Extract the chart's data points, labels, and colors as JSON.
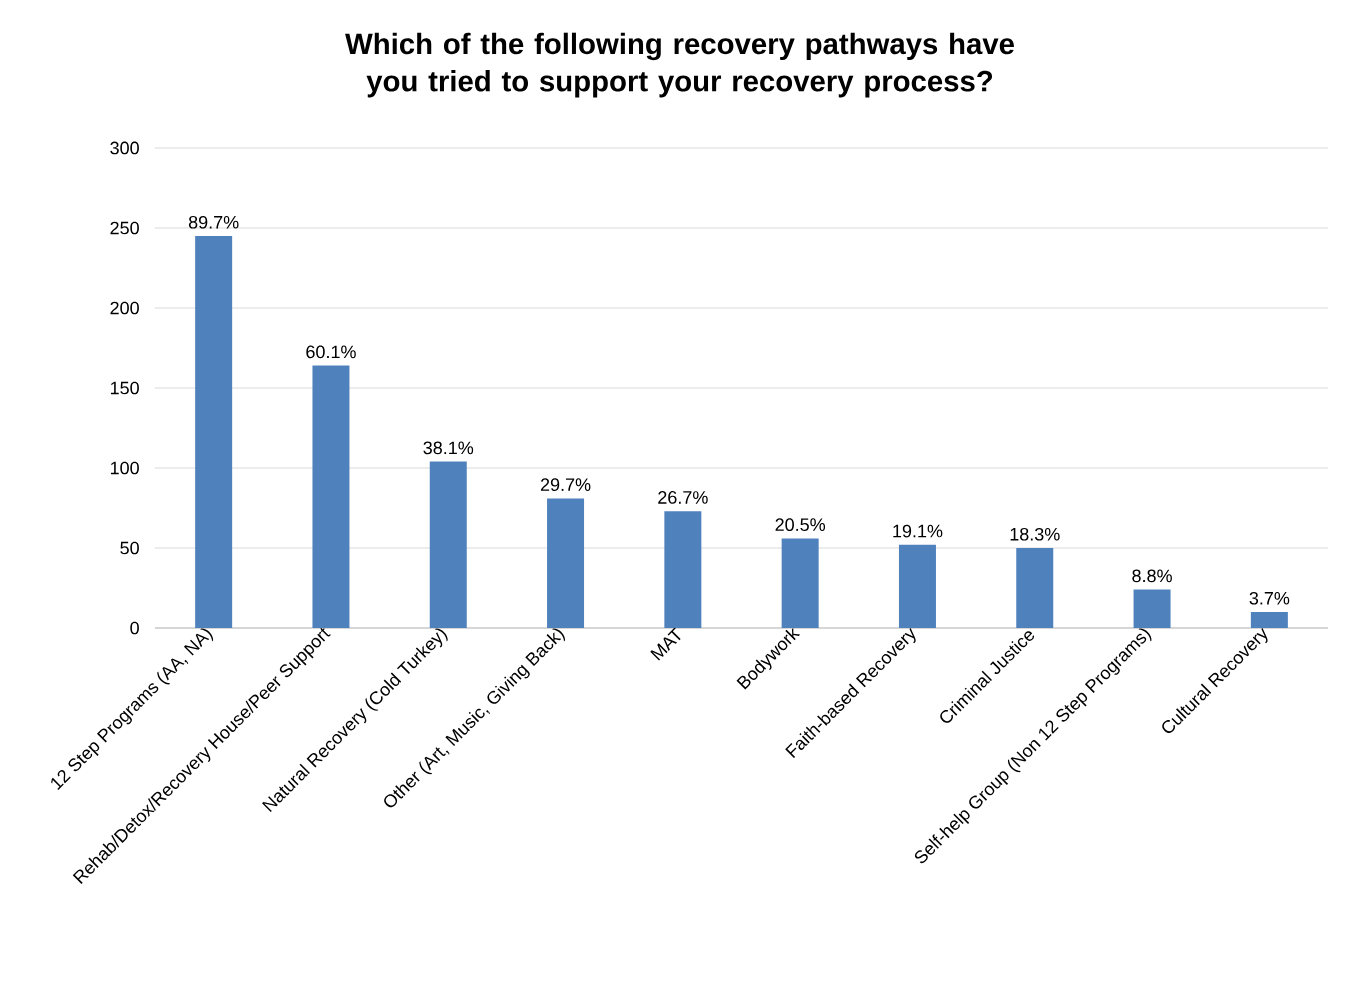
{
  "chart_data": {
    "type": "bar",
    "title": "Which of the following recovery pathways have you tried to support your recovery process?",
    "categories": [
      "12 Step Programs (AA, NA)",
      "Rehab/Detox/Recovery House/Peer Support",
      "Natural Recovery (Cold Turkey)",
      "Other (Art, Music, Giving Back)",
      "MAT",
      "Bodywork",
      "Faith-based Recovery",
      "Criminal Justice",
      "Self-help Group (Non 12 Step Programs)",
      "Cultural Recovery"
    ],
    "values": [
      245,
      164,
      104,
      81,
      73,
      56,
      52,
      50,
      24,
      10
    ],
    "annotations": [
      {
        "text": "89.7%",
        "x": "12 Step Programs (AA, NA)",
        "y": 245
      },
      {
        "text": "60.1%",
        "x": "Rehab/Detox/Recovery House/Peer Support",
        "y": 164
      },
      {
        "text": "38.1%",
        "x": "Natural Recovery (Cold Turkey)",
        "y": 104
      },
      {
        "text": "29.7%",
        "x": "Other (Art, Music, Giving Back)",
        "y": 81
      },
      {
        "text": "26.7%",
        "x": "MAT",
        "y": 73
      },
      {
        "text": "20.5%",
        "x": "Bodywork",
        "y": 56
      },
      {
        "text": "19.1%",
        "x": "Faith-based Recovery",
        "y": 52
      },
      {
        "text": "18.3%",
        "x": "Criminal Justice",
        "y": 50
      },
      {
        "text": "8.8%",
        "x": "Self-help Group (Non 12 Step Programs)",
        "y": 24
      },
      {
        "text": "3.7%",
        "x": "Cultural Recovery",
        "y": 10
      }
    ],
    "color": "#4f81bd",
    "ylim": [
      0,
      300
    ],
    "yticks": [
      0,
      50,
      100,
      150,
      200,
      250,
      300
    ],
    "grid": "y"
  }
}
